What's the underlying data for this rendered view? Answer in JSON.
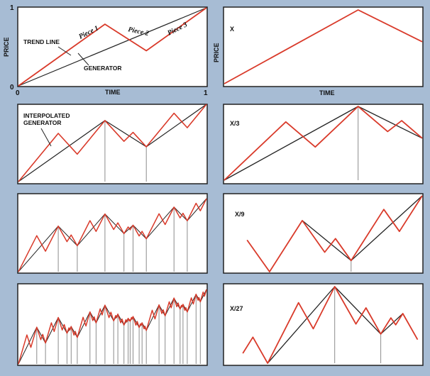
{
  "colors": {
    "background": "#a7bcd4",
    "panel_fill": "#ffffff",
    "frame": "#222222",
    "trend_line": "#222222",
    "generator": "#d93a2a",
    "drop_line": "#8c8c8c"
  },
  "left_column": {
    "panel1": {
      "y_axis_label": "PRICE",
      "x_axis_label": "TIME",
      "tick_zero": "0",
      "tick_x_zero": "0",
      "tick_y_one": "1",
      "tick_x_one": "1",
      "trend_line_label": "TREND LINE",
      "generator_label": "GENERATOR",
      "piece_1": "Piece 1",
      "piece_2": "Piece 2",
      "piece_3": "Piece 3",
      "generator_points": [
        [
          0,
          0
        ],
        [
          0.46,
          0.79
        ],
        [
          0.68,
          0.45
        ],
        [
          1,
          1
        ]
      ]
    },
    "panel2": {
      "label_line_1": "INTERPOLATED",
      "label_line_2": "GENERATOR"
    }
  },
  "right_column": {
    "panel1": {
      "scale_label": "X",
      "y_axis_label": "PRICE",
      "x_axis_label": "TIME"
    },
    "panel2": {
      "scale_label": "X/3"
    },
    "panel3": {
      "scale_label": "X/9"
    },
    "panel4": {
      "scale_label": "X/27"
    }
  }
}
